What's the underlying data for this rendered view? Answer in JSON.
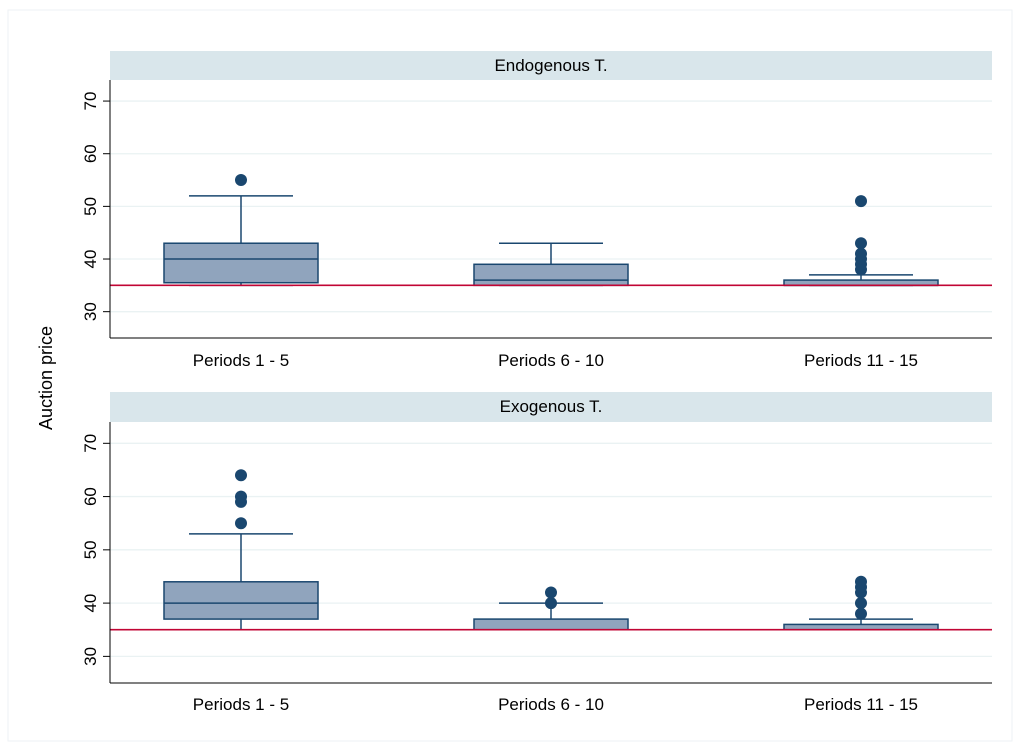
{
  "chart_data": {
    "type": "box",
    "ylabel": "Auction price",
    "ylim": [
      25,
      74
    ],
    "yticks": [
      30,
      40,
      50,
      60,
      70
    ],
    "categories": [
      "Periods 1 - 5",
      "Periods 6 - 10",
      "Periods 11 - 15"
    ],
    "reference_line": 35,
    "grid": true,
    "colors": {
      "box_fill": "#90a4bd",
      "box_stroke": "#1a476f",
      "outlier": "#1a476f",
      "reference_line": "#c10534",
      "strip_fill": "#d9e6eb",
      "gridline": "#eaf2f3"
    },
    "panels": [
      {
        "title": "Endogenous T.",
        "boxes": [
          {
            "category": "Periods 1 - 5",
            "whisker_low": 35,
            "q1": 35.5,
            "median": 40,
            "q3": 43,
            "whisker_high": 52,
            "outliers": [
              55
            ]
          },
          {
            "category": "Periods 6 - 10",
            "whisker_low": 35,
            "q1": 35,
            "median": 36,
            "q3": 39,
            "whisker_high": 43,
            "outliers": []
          },
          {
            "category": "Periods 11 - 15",
            "whisker_low": 35,
            "q1": 35,
            "median": 35,
            "q3": 36,
            "whisker_high": 37,
            "outliers": [
              38,
              39,
              40,
              41,
              43,
              51
            ]
          }
        ]
      },
      {
        "title": "Exogenous T.",
        "boxes": [
          {
            "category": "Periods 1 - 5",
            "whisker_low": 35,
            "q1": 37,
            "median": 40,
            "q3": 44,
            "whisker_high": 53,
            "outliers": [
              55,
              59,
              60,
              64
            ]
          },
          {
            "category": "Periods 6 - 10",
            "whisker_low": 35,
            "q1": 35,
            "median": 35,
            "q3": 37,
            "whisker_high": 40,
            "outliers": [
              40,
              42
            ]
          },
          {
            "category": "Periods 11 - 15",
            "whisker_low": 35,
            "q1": 35,
            "median": 35,
            "q3": 36,
            "whisker_high": 37,
            "outliers": [
              38,
              40,
              42,
              43,
              44
            ]
          }
        ]
      }
    ]
  }
}
